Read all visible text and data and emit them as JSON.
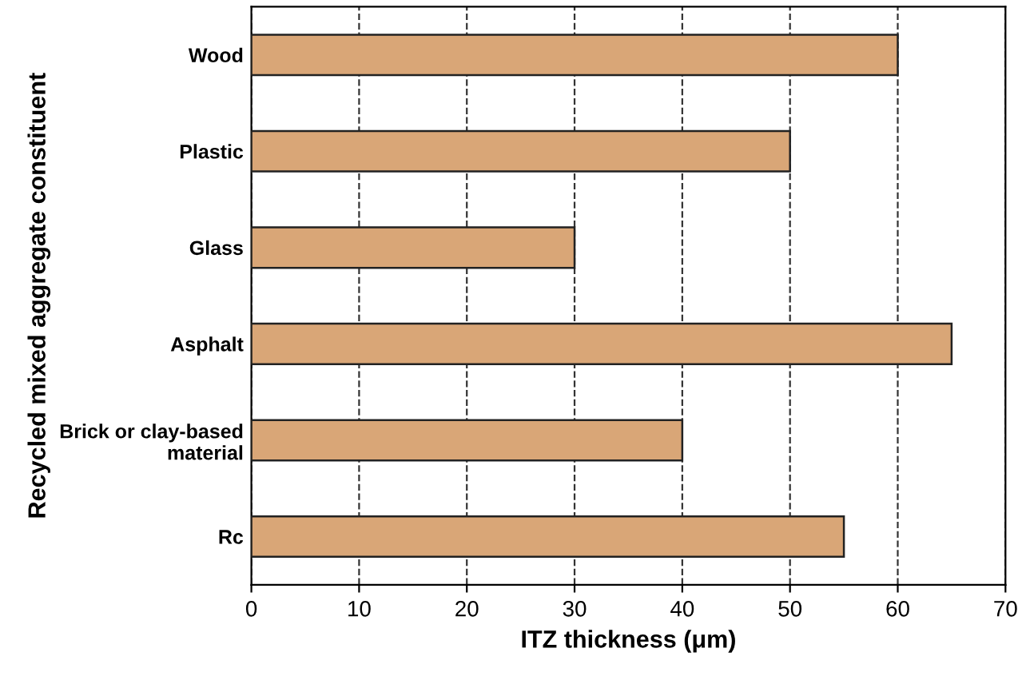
{
  "chart_data": {
    "type": "bar",
    "orientation": "horizontal",
    "xlabel": "ITZ thickness (μm)",
    "ylabel": "Recycled mixed aggregate constituent",
    "categories": [
      "Wood",
      "Plastic",
      "Glass",
      "Asphalt",
      "Brick or clay-based\nmaterial",
      "Rc"
    ],
    "values": [
      60,
      50,
      30,
      65,
      40,
      55
    ],
    "color": "#d9a677",
    "xlim": [
      0,
      70
    ],
    "xticks": [
      0,
      10,
      20,
      30,
      40,
      50,
      60,
      70
    ],
    "grid": "x",
    "line_style": "dashed"
  }
}
